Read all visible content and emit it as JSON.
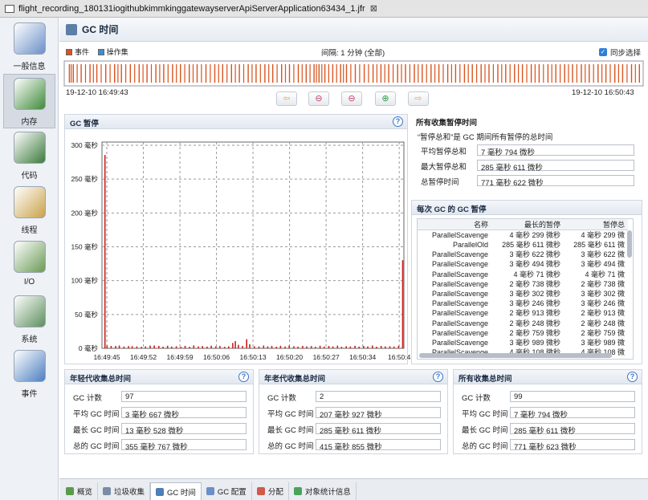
{
  "window": {
    "title": "flight_recording_180131iogithubkimmkinggatewayserverApiServerApplication63434_1.jfr",
    "close": "⊠"
  },
  "sidebar": {
    "items": [
      {
        "label": "一般信息",
        "icon": "gauge-icon",
        "color": "#6b8fc8"
      },
      {
        "label": "内存",
        "icon": "memory-chip-icon",
        "color": "#3f8a3a"
      },
      {
        "label": "代码",
        "icon": "java-code-icon",
        "color": "#3c7a3c"
      },
      {
        "label": "线程",
        "icon": "threads-icon",
        "color": "#caa24a"
      },
      {
        "label": "I/O",
        "icon": "io-icon",
        "color": "#6a9a55"
      },
      {
        "label": "系统",
        "icon": "system-icon",
        "color": "#5d8f5d"
      },
      {
        "label": "事件",
        "icon": "events-icon",
        "color": "#4c7fc0"
      }
    ]
  },
  "page": {
    "title": "GC 时间"
  },
  "timeline": {
    "legend_events": "事件",
    "legend_ops": "操作集",
    "interval": "间隔: 1 分钟 (全部)",
    "sync": "同步选择",
    "start": "19-12-10 16:49:43",
    "end": "19-12-10 16:50:43"
  },
  "gc_panel": {
    "title": "GC 暂停",
    "help": "?"
  },
  "summary": {
    "title": "所有收集暂停时间",
    "note": "“暂停总和”是 GC 期间所有暂停的总时间",
    "rows": [
      {
        "k": "平均暂停总和",
        "v": "7 毫秒 794 微秒"
      },
      {
        "k": "最大暂停总和",
        "v": "285 毫秒 611 微秒"
      },
      {
        "k": "总暂停时间",
        "v": "771 毫秒 622 微秒"
      }
    ]
  },
  "gc_table": {
    "title": "每次 GC 的 GC 暂停",
    "headers": [
      "名称",
      "最长的暂停",
      "暂停总"
    ],
    "rows": [
      [
        "ParallelScavenge",
        "4 毫秒 299 微秒",
        "4 毫秒 299 微"
      ],
      [
        "ParallelOld",
        "285 毫秒 611 微秒",
        "285 毫秒 611 微"
      ],
      [
        "ParallelScavenge",
        "3 毫秒 622 微秒",
        "3 毫秒 622 微"
      ],
      [
        "ParallelScavenge",
        "3 毫秒 494 微秒",
        "3 毫秒 494 微"
      ],
      [
        "ParallelScavenge",
        "4 毫秒 71 微秒",
        "4 毫秒 71 微"
      ],
      [
        "ParallelScavenge",
        "2 毫秒 738 微秒",
        "2 毫秒 738 微"
      ],
      [
        "ParallelScavenge",
        "3 毫秒 302 微秒",
        "3 毫秒 302 微"
      ],
      [
        "ParallelScavenge",
        "3 毫秒 246 微秒",
        "3 毫秒 246 微"
      ],
      [
        "ParallelScavenge",
        "2 毫秒 913 微秒",
        "2 毫秒 913 微"
      ],
      [
        "ParallelScavenge",
        "2 毫秒 248 微秒",
        "2 毫秒 248 微"
      ],
      [
        "ParallelScavenge",
        "2 毫秒 759 微秒",
        "2 毫秒 759 微"
      ],
      [
        "ParallelScavenge",
        "3 毫秒 989 微秒",
        "3 毫秒 989 微"
      ],
      [
        "ParallelScavenge",
        "4 毫秒 108 微秒",
        "4 毫秒 108 微"
      ]
    ]
  },
  "young": {
    "title": "年轻代收集总时间",
    "rows": [
      {
        "k": "GC 计数",
        "v": "97"
      },
      {
        "k": "平均 GC 时间",
        "v": "3 毫秒 667 微秒"
      },
      {
        "k": "最长 GC 时间",
        "v": "13 毫秒 528 微秒"
      },
      {
        "k": "总的 GC 时间",
        "v": "355 毫秒 767 微秒"
      }
    ]
  },
  "old": {
    "title": "年老代收集总时间",
    "rows": [
      {
        "k": "GC 计数",
        "v": "2"
      },
      {
        "k": "平均 GC 时间",
        "v": "207 毫秒 927 微秒"
      },
      {
        "k": "最长 GC 时间",
        "v": "285 毫秒 611 微秒"
      },
      {
        "k": "总的 GC 时间",
        "v": "415 毫秒 855 微秒"
      }
    ]
  },
  "all": {
    "title": "所有收集总时间",
    "rows": [
      {
        "k": "GC 计数",
        "v": "99"
      },
      {
        "k": "平均 GC 时间",
        "v": "7 毫秒 794 微秒"
      },
      {
        "k": "最长 GC 时间",
        "v": "285 毫秒 611 微秒"
      },
      {
        "k": "总的 GC 时间",
        "v": "771 毫秒 623 微秒"
      }
    ]
  },
  "tabs": [
    {
      "label": "概览",
      "icon": "overview-icon",
      "color": "#5a9a4a"
    },
    {
      "label": "垃圾收集",
      "icon": "trash-icon",
      "color": "#7a8ca6"
    },
    {
      "label": "GC 时间",
      "icon": "gc-time-icon",
      "color": "#4d7fb8",
      "selected": true
    },
    {
      "label": "GC 配置",
      "icon": "gc-config-icon",
      "color": "#6b8fc8"
    },
    {
      "label": "分配",
      "icon": "allocation-icon",
      "color": "#d25a4a"
    },
    {
      "label": "对象统计信息",
      "icon": "object-stats-icon",
      "color": "#4aa35a"
    }
  ],
  "colors": {
    "event": "#d9531e",
    "ops": "#3a8fd0",
    "bar": "#cc1f1f"
  },
  "chart_data": {
    "type": "bar",
    "title": "GC 暂停",
    "y_unit": "毫秒",
    "ylim": [
      0,
      300
    ],
    "yticks": [
      "0 毫秒",
      "50 毫秒",
      "100 毫秒",
      "150 毫秒",
      "200 毫秒",
      "250 毫秒",
      "300 毫秒"
    ],
    "xticks": [
      "16:49:45",
      "16:49:52",
      "16:49:59",
      "16:50:06",
      "16:50:13",
      "16:50:20",
      "16:50:27",
      "16:50:34",
      "16:50:4"
    ],
    "grid": true,
    "series": [
      {
        "values": [
          [
            0.3,
            285.6
          ],
          [
            0.7,
            4.3
          ],
          [
            1.5,
            3.6
          ],
          [
            2.4,
            3.5
          ],
          [
            3.1,
            4.1
          ],
          [
            4.0,
            2.7
          ],
          [
            4.9,
            3.3
          ],
          [
            5.6,
            3.2
          ],
          [
            6.5,
            2.9
          ],
          [
            7.4,
            2.2
          ],
          [
            8.2,
            2.8
          ],
          [
            9.1,
            4.0
          ],
          [
            9.9,
            4.1
          ],
          [
            10.8,
            3.5
          ],
          [
            11.6,
            2.5
          ],
          [
            12.5,
            3.8
          ],
          [
            13.3,
            2.6
          ],
          [
            14.2,
            3.1
          ],
          [
            15.1,
            2.4
          ],
          [
            15.9,
            3.7
          ],
          [
            16.8,
            2.2
          ],
          [
            17.6,
            4.4
          ],
          [
            18.5,
            2.9
          ],
          [
            19.3,
            3.3
          ],
          [
            20.2,
            2.5
          ],
          [
            21.0,
            3.9
          ],
          [
            21.9,
            2.8
          ],
          [
            22.7,
            3.4
          ],
          [
            23.6,
            2.3
          ],
          [
            24.4,
            3.0
          ],
          [
            25.2,
            8.0
          ],
          [
            25.7,
            10.5
          ],
          [
            26.3,
            5.2
          ],
          [
            27.1,
            3.6
          ],
          [
            27.9,
            13.5
          ],
          [
            28.5,
            6.1
          ],
          [
            29.4,
            3.0
          ],
          [
            30.3,
            2.7
          ],
          [
            31.2,
            4.1
          ],
          [
            32.0,
            2.9
          ],
          [
            32.8,
            3.5
          ],
          [
            33.7,
            2.4
          ],
          [
            34.5,
            3.8
          ],
          [
            35.4,
            2.6
          ],
          [
            36.2,
            4.2
          ],
          [
            37.1,
            3.1
          ],
          [
            37.9,
            2.5
          ],
          [
            38.8,
            3.6
          ],
          [
            39.6,
            2.8
          ],
          [
            40.5,
            3.3
          ],
          [
            41.3,
            2.2
          ],
          [
            42.2,
            3.9
          ],
          [
            43.0,
            2.6
          ],
          [
            43.9,
            3.4
          ],
          [
            44.7,
            2.9
          ],
          [
            45.6,
            4.0
          ],
          [
            46.4,
            2.3
          ],
          [
            47.3,
            3.2
          ],
          [
            48.1,
            2.7
          ],
          [
            49.0,
            3.8
          ],
          [
            49.8,
            2.5
          ],
          [
            50.7,
            3.4
          ],
          [
            51.5,
            2.8
          ],
          [
            52.4,
            4.1
          ],
          [
            53.2,
            2.4
          ],
          [
            54.1,
            3.6
          ],
          [
            54.9,
            2.9
          ],
          [
            55.8,
            3.1
          ],
          [
            56.6,
            2.6
          ],
          [
            57.5,
            3.7
          ],
          [
            58.3,
            130.2
          ]
        ]
      }
    ],
    "x_range_seconds": [
      0,
      58.5
    ]
  }
}
